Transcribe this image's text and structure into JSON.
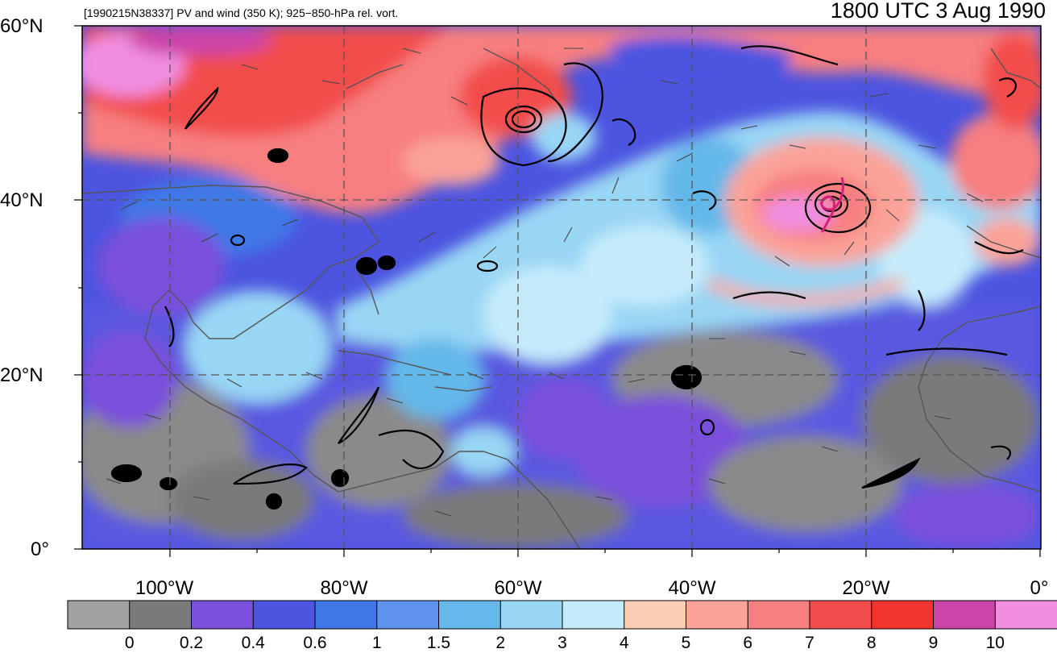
{
  "header": {
    "left_title": "[1990215N38337] PV and wind (350 K); 925−850-hPa rel. vort.",
    "right_title": "1800 UTC 3 Aug 1990"
  },
  "map": {
    "lat_labels": [
      "60°N",
      "40°N",
      "20°N",
      "0°"
    ],
    "lon_labels": [
      "100°W",
      "80°W",
      "60°W",
      "40°W",
      "20°W",
      "0°"
    ],
    "extent": {
      "lon_min": -110,
      "lon_max": 0,
      "lat_min": 0,
      "lat_max": 60
    },
    "storm_center": {
      "lat": 39.5,
      "lon": -24
    }
  },
  "colorbar": {
    "labels": [
      "0",
      "0.2",
      "0.4",
      "0.6",
      "1",
      "1.5",
      "2",
      "3",
      "4",
      "5",
      "6",
      "7",
      "8",
      "9",
      "10"
    ],
    "colors": [
      "#a0a0a0",
      "#7a7a7a",
      "#7a4fdb",
      "#4c54e0",
      "#3f78e6",
      "#5f93ef",
      "#64b8ea",
      "#99d6f4",
      "#c5ebfb",
      "#fbcdb4",
      "#fba398",
      "#f77f80",
      "#f24d4c",
      "#f2342f",
      "#cc44a8",
      "#f08ee0"
    ]
  }
}
